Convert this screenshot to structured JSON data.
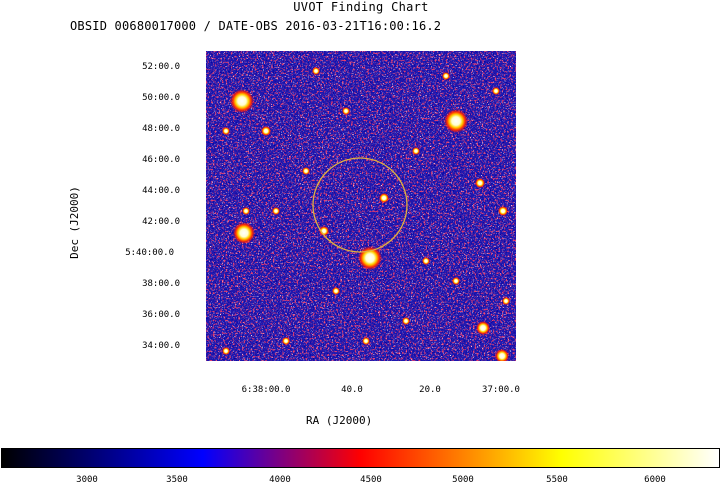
{
  "header": {
    "title": "UVOT Finding Chart",
    "subtitle": "OBSID 00680017000 / DATE-OBS 2016-03-21T16:00:16.2"
  },
  "axes": {
    "ra_title": "RA (J2000)",
    "dec_title": "Dec (J2000)",
    "dec_ticks": [
      "52:00.0",
      "50:00.0",
      "48:00.0",
      "46:00.0",
      "44:00.0",
      "42:00.0",
      "5:40:00.0",
      "38:00.0",
      "36:00.0",
      "34:00.0"
    ],
    "ra_ticks": [
      "6:38:00.0",
      "40.0",
      "20.0",
      "37:00.0"
    ]
  },
  "colorbar": {
    "ticks": [
      "3000",
      "3500",
      "4000",
      "4500",
      "5000",
      "5500",
      "6000"
    ],
    "range": [
      2600,
      6350
    ],
    "colors": [
      "#000000",
      "#0000ff",
      "#ff0000",
      "#ffff00",
      "#ffffff"
    ]
  },
  "marker": {
    "shape": "circle",
    "color": "#e0b040"
  }
}
